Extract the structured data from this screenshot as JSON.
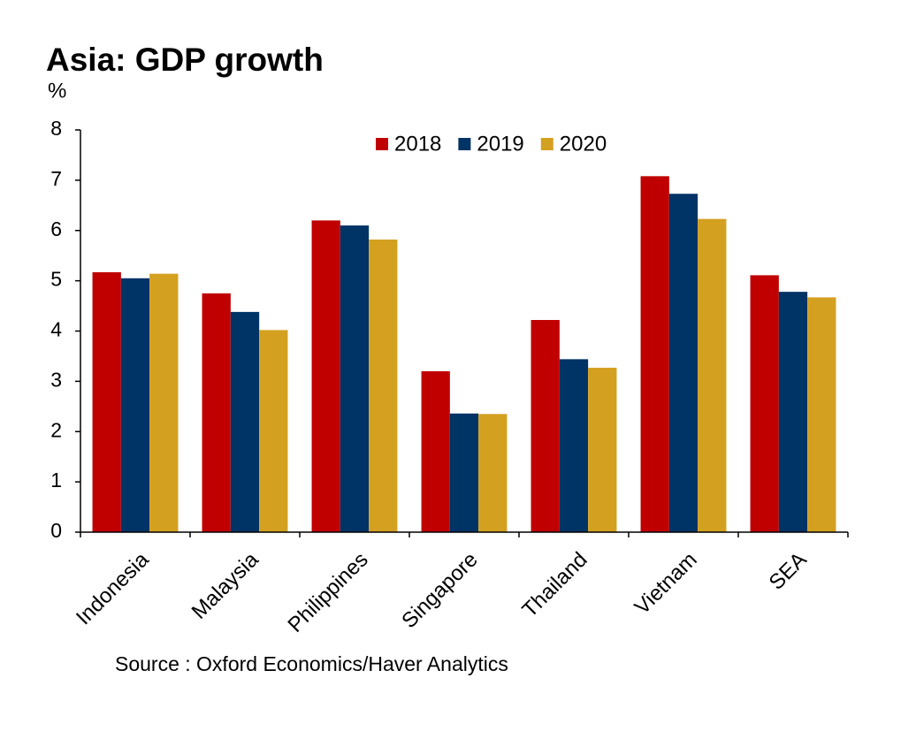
{
  "chart_data": {
    "type": "bar",
    "title": "Asia: GDP growth",
    "y_label": "%",
    "source": "Source : Oxford Economics/Haver Analytics",
    "categories": [
      "Indonesia",
      "Malaysia",
      "Philippines",
      "Singapore",
      "Thailand",
      "Vietnam",
      "SEA"
    ],
    "series": [
      {
        "name": "2018",
        "color": "#c00000",
        "values": [
          5.17,
          4.75,
          6.2,
          3.2,
          4.22,
          7.08,
          5.11
        ]
      },
      {
        "name": "2019",
        "color": "#003366",
        "values": [
          5.05,
          4.38,
          6.1,
          2.36,
          3.44,
          6.73,
          4.78
        ]
      },
      {
        "name": "2020",
        "color": "#d4a020",
        "values": [
          5.14,
          4.02,
          5.82,
          2.35,
          3.27,
          6.23,
          4.67
        ]
      }
    ],
    "ylim": [
      0,
      8
    ],
    "yticks": [
      0,
      1,
      2,
      3,
      4,
      5,
      6,
      7,
      8
    ],
    "legend": "top"
  }
}
